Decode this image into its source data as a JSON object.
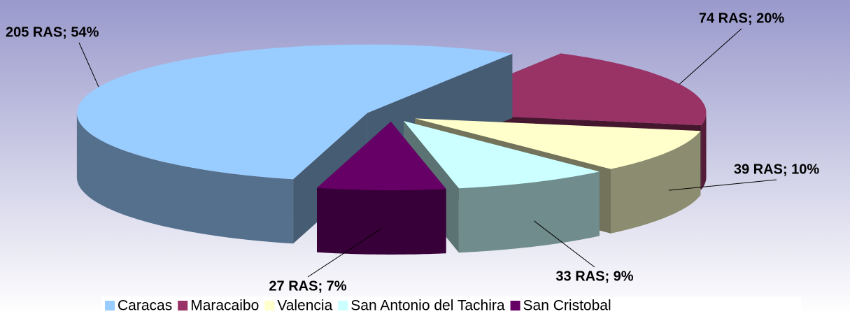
{
  "chart_data": {
    "type": "pie",
    "categories": [
      "Caracas",
      "Maracaibo",
      "Valencia",
      "San Antonio del Tachira",
      "San Cristobal"
    ],
    "values": [
      205,
      74,
      39,
      33,
      27
    ],
    "value_labels": [
      "205 RAS; 54%",
      "74 RAS; 20%",
      "39 RAS; 10%",
      "33 RAS; 9%",
      "27 RAS; 7%"
    ],
    "colors": [
      "#99ccff",
      "#993366",
      "#ffffcc",
      "#ccffff",
      "#660066"
    ],
    "legend": "bottom"
  }
}
